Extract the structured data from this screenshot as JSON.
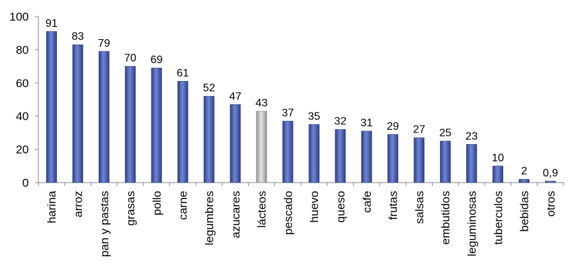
{
  "chart_data": {
    "type": "bar",
    "categories": [
      "harina",
      "arroz",
      "pan y pastas",
      "grasas",
      "pollo",
      "carne",
      "legumbres",
      "azucares",
      "lácteos",
      "pescado",
      "huevo",
      "queso",
      "cafe",
      "frutas",
      "salsas",
      "embutidos",
      "leguminosas",
      "tuberculos",
      "bebidas",
      "otros"
    ],
    "values": [
      91,
      83,
      79,
      70,
      69,
      61,
      52,
      47,
      43,
      37,
      35,
      32,
      31,
      29,
      27,
      25,
      23,
      10,
      2,
      0.9
    ],
    "data_labels": [
      "91",
      "83",
      "79",
      "70",
      "69",
      "61",
      "52",
      "47",
      "43",
      "37",
      "35",
      "32",
      "31",
      "29",
      "27",
      "25",
      "23",
      "10",
      "2",
      "0,9"
    ],
    "y_ticks": [
      "0",
      "20",
      "40",
      "60",
      "80",
      "100"
    ],
    "title": "",
    "xlabel": "",
    "ylabel": "",
    "ylim": [
      0,
      100
    ],
    "grid": false,
    "legend": "none",
    "bar_color": "#4a62b0",
    "highlight_category": "lácteos",
    "highlight_color": "#b9bcbf"
  }
}
